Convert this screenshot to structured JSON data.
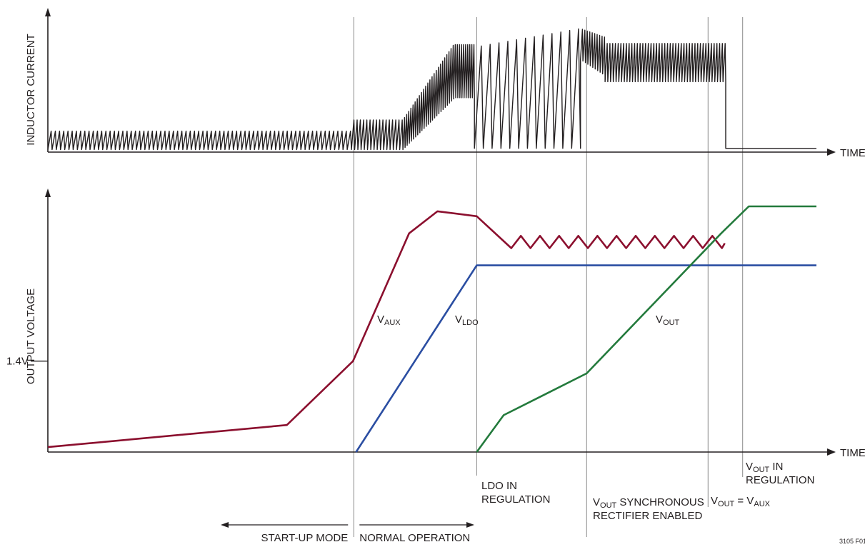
{
  "chart_data": [
    {
      "type": "line",
      "ylabel": "INDUCTOR CURRENT",
      "xlabel": "TIME",
      "ylim": [
        0,
        1
      ],
      "xlim": [
        0,
        1
      ],
      "description_free": true,
      "series": [
        {
          "values": {
            "phases": [
              {
                "x": [
                  0.0,
                  0.395
                ],
                "lo": 0.02,
                "hi": 0.17,
                "cycles": 72
              },
              {
                "x": [
                  0.395,
                  0.462
                ],
                "lo": 0.02,
                "hi": 0.26,
                "cycles": 16
              },
              {
                "x": [
                  0.462,
                  0.528
                ],
                "lo": [
                  0.02,
                  0.43
                ],
                "hi": [
                  0.26,
                  0.87
                ],
                "cycles": 24
              },
              {
                "x": [
                  0.528,
                  0.555
                ],
                "lo": 0.44,
                "hi": 0.87,
                "cycles": 10
              },
              {
                "x": [
                  0.555,
                  0.693
                ],
                "lo": 0.03,
                "hi": [
                  0.85,
                  1.0
                ],
                "cycles": 12
              },
              {
                "x": [
                  0.693,
                  0.725
                ],
                "lo": [
                  0.75,
                  0.62
                ],
                "hi": [
                  1.0,
                  0.93
                ],
                "cycles": 10
              },
              {
                "x": [
                  0.725,
                  0.882
                ],
                "lo": 0.57,
                "hi": 0.88,
                "cycles": 44
              }
            ],
            "after": {
              "x": [
                0.882,
                1.0
              ],
              "value": 0.03
            }
          }
        }
      ]
    },
    {
      "type": "line",
      "ylabel": "OUTPUT VOLTAGE",
      "xlabel": "TIME",
      "ylim": [
        0,
        1
      ],
      "xlim": [
        0,
        1
      ],
      "yticks": [
        {
          "value": 0.37,
          "label": "1.4V"
        }
      ],
      "series": [
        {
          "name_label": {
            "main": "V",
            "sub": "AUX"
          },
          "color": "#8b0f2e",
          "x": [
            0.0,
            0.311,
            0.397,
            0.47,
            0.507,
            0.558,
            0.603
          ],
          "y": [
            0.02,
            0.11,
            0.37,
            0.89,
            0.98,
            0.96,
            0.83
          ],
          "ripple": {
            "x": [
              0.603,
              0.877
            ],
            "lo": 0.83,
            "hi": 0.88,
            "teeth": 11
          },
          "y_end": 0.85
        },
        {
          "name_label": {
            "main": "V",
            "sub": "LDO"
          },
          "color": "#2b4ea2",
          "x": [
            0.401,
            0.558,
            1.0
          ],
          "y": [
            0.0,
            0.76,
            0.76
          ]
        },
        {
          "name_label": {
            "main": "V",
            "sub": "OUT"
          },
          "color": "#237a3c",
          "x": [
            0.558,
            0.593,
            0.701,
            0.876,
            0.912,
            1.0
          ],
          "y": [
            0.0,
            0.15,
            0.32,
            0.89,
            1.0,
            1.0
          ]
        }
      ]
    }
  ],
  "markers": [
    {
      "x": 0.398
    },
    {
      "x": 0.558,
      "lines": [
        {
          "parts": [
            {
              "t": "LDO IN"
            }
          ]
        },
        {
          "parts": [
            {
              "t": "REGULATION"
            }
          ]
        }
      ]
    },
    {
      "x": 0.701,
      "lines": [
        {
          "parts": [
            {
              "t": "V"
            },
            {
              "t": "OUT",
              "sub": true
            },
            {
              "t": " SYNCHRONOUS"
            }
          ]
        },
        {
          "parts": [
            {
              "t": "RECTIFIER ENABLED"
            }
          ]
        }
      ]
    },
    {
      "x": 0.859,
      "lines": [
        {
          "parts": [
            {
              "t": "V"
            },
            {
              "t": "OUT",
              "sub": true
            },
            {
              "t": " = V"
            },
            {
              "t": "AUX",
              "sub": true
            }
          ]
        }
      ]
    },
    {
      "x": 0.904,
      "lines": [
        {
          "parts": [
            {
              "t": "V"
            },
            {
              "t": "OUT",
              "sub": true
            },
            {
              "t": " IN"
            }
          ]
        },
        {
          "parts": [
            {
              "t": "REGULATION"
            }
          ]
        }
      ]
    }
  ],
  "modes": {
    "startup": "START-UP MODE",
    "normal": "NORMAL OPERATION"
  },
  "figure_id": "3105 F01"
}
